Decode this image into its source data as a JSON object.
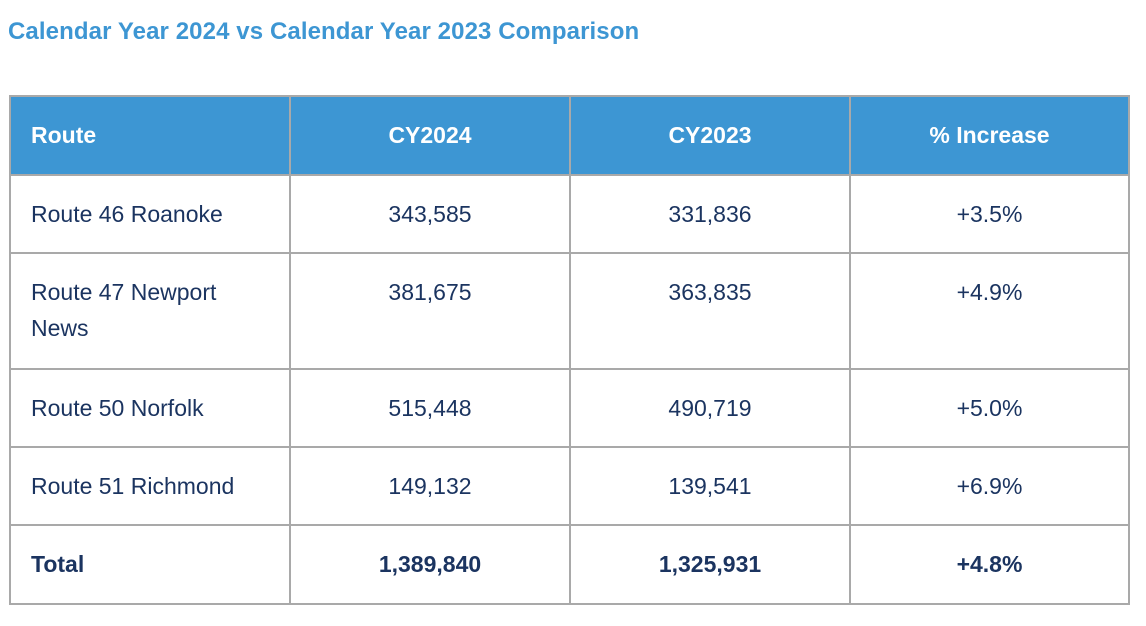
{
  "title": "Calendar Year 2024 vs Calendar Year 2023 Comparison",
  "table": {
    "headers": {
      "route": "Route",
      "cy2024": "CY2024",
      "cy2023": "CY2023",
      "increase": "% Increase"
    },
    "rows": [
      {
        "route": "Route 46 Roanoke",
        "cy2024": "343,585",
        "cy2023": "331,836",
        "increase": "+3.5%"
      },
      {
        "route": "Route 47 Newport News",
        "cy2024": "381,675",
        "cy2023": "363,835",
        "increase": "+4.9%"
      },
      {
        "route": "Route 50 Norfolk",
        "cy2024": "515,448",
        "cy2023": "490,719",
        "increase": "+5.0%"
      },
      {
        "route": "Route 51 Richmond",
        "cy2024": "149,132",
        "cy2023": "139,541",
        "increase": "+6.9%"
      }
    ],
    "total": {
      "route": "Total",
      "cy2024": "1,389,840",
      "cy2023": "1,325,931",
      "increase": "+4.8%"
    }
  },
  "colors": {
    "title": "#3d96d3",
    "header_bg": "#3d96d3",
    "header_text": "#ffffff",
    "body_text": "#1b3460",
    "border": "#a9a9a9"
  }
}
